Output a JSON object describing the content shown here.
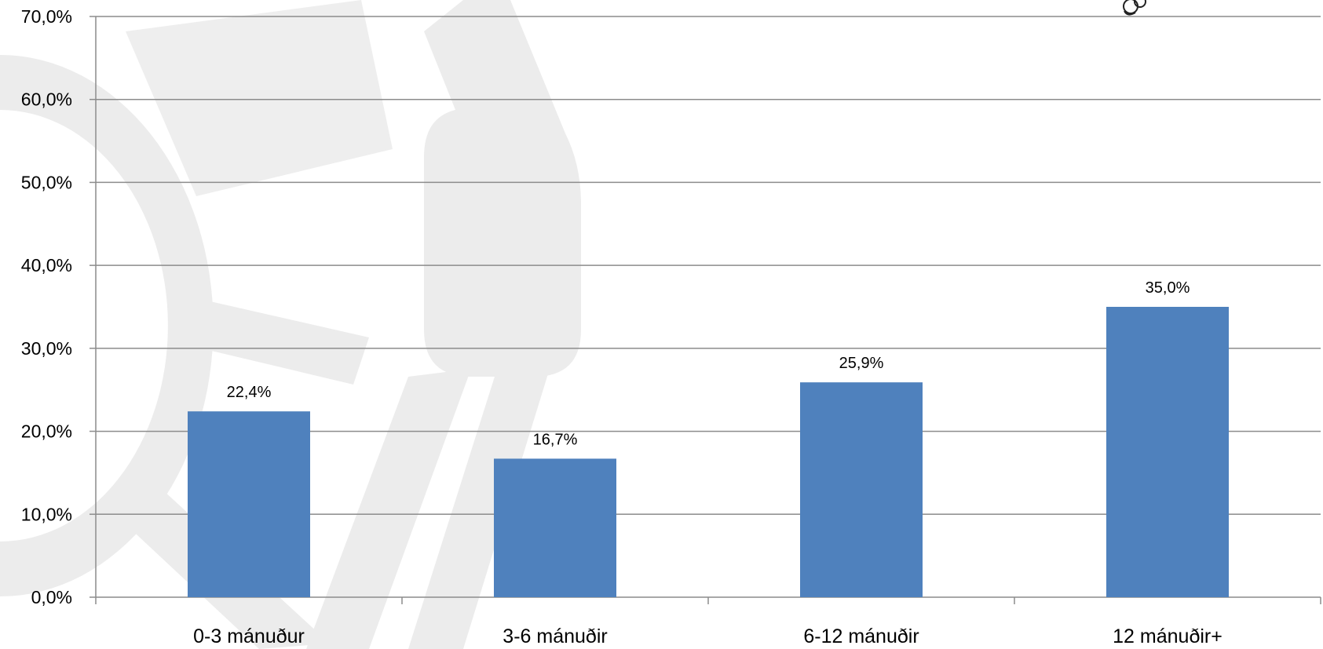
{
  "chart_data": {
    "type": "bar",
    "title": "",
    "xlabel": "",
    "ylabel": "",
    "categories": [
      "0-3 mánuður",
      "3-6 mánuðir",
      "6-12 mánuðir",
      "12 mánuðir+"
    ],
    "values": [
      22.4,
      16.7,
      25.9,
      35.0
    ],
    "data_labels": [
      "22,4%",
      "16,7%",
      "25,9%",
      "35,0%"
    ],
    "ylim": [
      0,
      70
    ],
    "yticks": [
      0,
      10,
      20,
      30,
      40,
      50,
      60,
      70
    ],
    "ytick_labels": [
      "0,0%",
      "10,0%",
      "20,0%",
      "30,0%",
      "40,0%",
      "50,0%",
      "60,0%",
      "70,0%"
    ],
    "grid": true,
    "legend": "none",
    "bar_color": "#4F81BD",
    "grid_color": "#8C8C8C",
    "watermark": "faint grey chain-link logo behind plot"
  }
}
